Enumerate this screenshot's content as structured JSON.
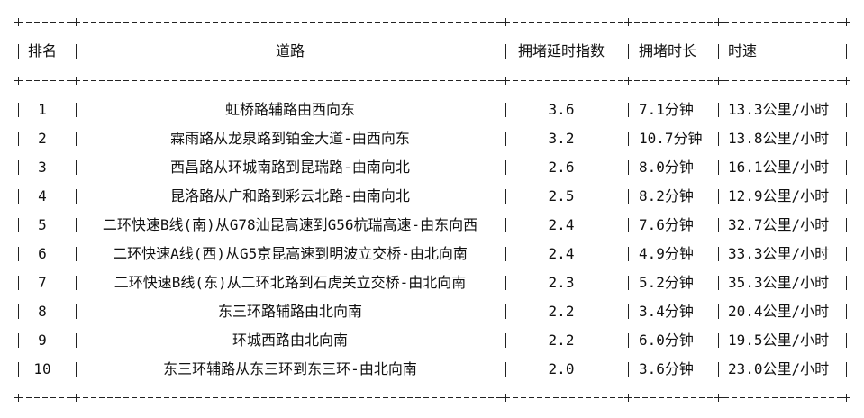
{
  "table": {
    "headers": [
      "排名",
      "道路",
      "拥堵延时指数",
      "拥堵时长",
      "时速"
    ],
    "rows": [
      [
        "1",
        "虹桥路辅路由西向东",
        "3.6",
        "7.1分钟",
        "13.3公里/小时"
      ],
      [
        "2",
        "霖雨路从龙泉路到铂金大道-由西向东",
        "3.2",
        "10.7分钟",
        "13.8公里/小时"
      ],
      [
        "3",
        "西昌路从环城南路到昆瑞路-由南向北",
        "2.6",
        "8.0分钟",
        "16.1公里/小时"
      ],
      [
        "4",
        "昆洛路从广和路到彩云北路-由南向北",
        "2.5",
        "8.2分钟",
        "12.9公里/小时"
      ],
      [
        "5",
        "二环快速B线(南)从G78汕昆高速到G56杭瑞高速-由东向西",
        "2.4",
        "7.6分钟",
        "32.7公里/小时"
      ],
      [
        "6",
        "二环快速A线(西)从G5京昆高速到明波立交桥-由北向南",
        "2.4",
        "4.9分钟",
        "33.3公里/小时"
      ],
      [
        "7",
        "二环快速B线(东)从二环北路到石虎关立交桥-由北向南",
        "2.3",
        "5.2分钟",
        "35.3公里/小时"
      ],
      [
        "8",
        "东三环路辅路由北向南",
        "2.2",
        "3.4分钟",
        "20.4公里/小时"
      ],
      [
        "9",
        "环城西路由北向南",
        "2.2",
        "6.0分钟",
        "19.5公里/小时"
      ],
      [
        "10",
        "东三环辅路从东三环到东三环-由北向南",
        "2.0",
        "3.6分钟",
        "23.0公里/小时"
      ]
    ]
  }
}
